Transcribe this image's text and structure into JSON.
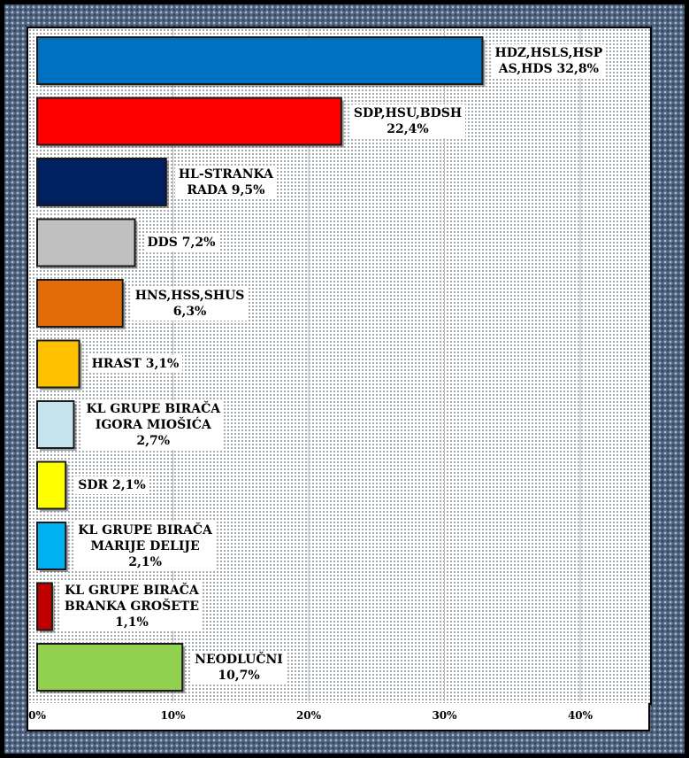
{
  "chart_data": {
    "type": "bar",
    "orientation": "horizontal",
    "categories": [
      "HDZ,HSLS,HSP\nAS,HDS 32,8%",
      "SDP,HSU,BDSH\n22,4%",
      "HL-STRANKA\nRADA 9,5%",
      "DDS 7,2%",
      "HNS,HSS,SHUS\n6,3%",
      "HRAST 3,1%",
      "KL GRUPE BIRAČA\nIGORA MIOŠIĆA\n2,7%",
      "SDR 2,1%",
      "KL GRUPE BIRAČA\nMARIJE DELIJE\n2,1%",
      "KL GRUPE BIRAČA\nBRANKA GROŠETE\n1,1%",
      "NEODLUČNI\n10,7%"
    ],
    "values": [
      32.8,
      22.4,
      9.5,
      7.2,
      6.3,
      3.1,
      2.7,
      2.1,
      2.1,
      1.1,
      10.7
    ],
    "colors": [
      "#0070c0",
      "#ff0000",
      "#002060",
      "#c0c0c0",
      "#e36c0a",
      "#ffc000",
      "#c5e3ec",
      "#ffff00",
      "#00b0f0",
      "#c00000",
      "#92d050"
    ],
    "x_ticks": [
      "0%",
      "10%",
      "20%",
      "30%",
      "40%"
    ],
    "xlim": [
      0,
      44.5
    ],
    "grid": true,
    "title": "",
    "xlabel": "",
    "ylabel": ""
  }
}
